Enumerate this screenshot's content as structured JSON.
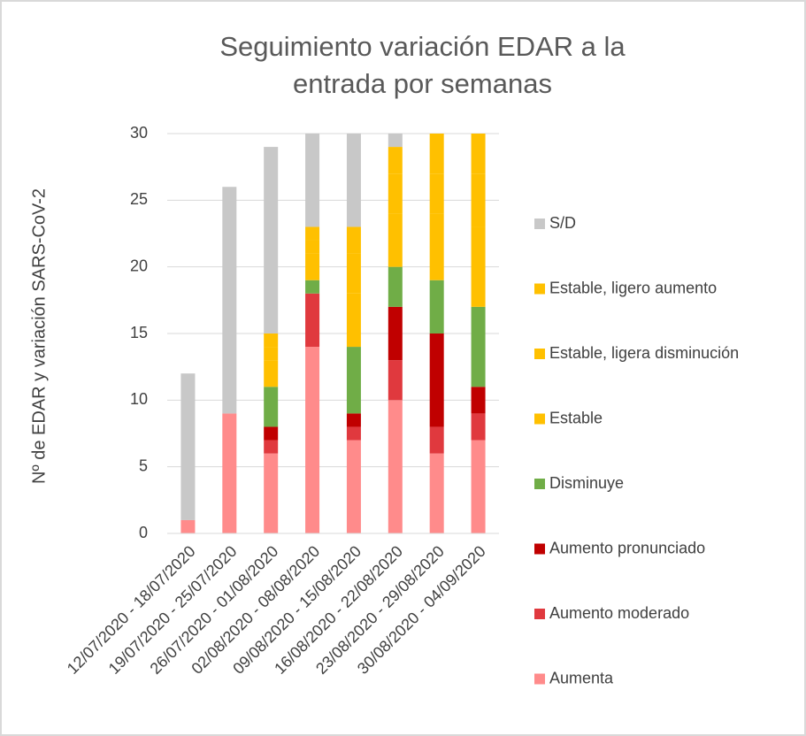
{
  "chart_data": {
    "type": "stacked_bar",
    "title": "Seguimiento variación EDAR a la entrada por semanas",
    "y_label": "Nº de EDAR y variación SARS-CoV-2",
    "categories": [
      "12/07/2020 - 18/07/2020",
      "19/07/2020 - 25/07/2020",
      "26/07/2020 - 01/08/2020",
      "02/08/2020 - 08/08/2020",
      "09/08/2020 - 15/08/2020",
      "16/08/2020 - 22/08/2020",
      "23/08/2020 - 29/08/2020",
      "30/08/2020 - 04/09/2020"
    ],
    "series": [
      {
        "name": "Aumenta",
        "color": "#ff8b8b",
        "values": [
          1,
          9,
          6,
          14,
          7,
          10,
          6,
          7
        ]
      },
      {
        "name": "Aumento moderado",
        "color": "#e0393e",
        "values": [
          0,
          0,
          1,
          4,
          1,
          3,
          2,
          2
        ]
      },
      {
        "name": "Aumento pronunciado",
        "color": "#c00000",
        "values": [
          0,
          0,
          1,
          0,
          1,
          4,
          7,
          2
        ]
      },
      {
        "name": "Disminuye",
        "color": "#70ad47",
        "values": [
          0,
          0,
          3,
          1,
          5,
          3,
          4,
          6
        ]
      },
      {
        "name": "Estable",
        "color": "#ffc000",
        "values": [
          0,
          0,
          2,
          2,
          4,
          4,
          5,
          6
        ]
      },
      {
        "name": "Estable, ligera disminución",
        "color": "#ffc000",
        "values": [
          0,
          0,
          1,
          1,
          3,
          3,
          3,
          4
        ]
      },
      {
        "name": "Estable, ligero aumento",
        "color": "#ffc000",
        "values": [
          0,
          0,
          1,
          1,
          2,
          2,
          3,
          3
        ]
      },
      {
        "name": "S/D",
        "color": "#c8c8c8",
        "values": [
          11,
          17,
          14,
          7,
          7,
          1,
          0,
          0
        ]
      }
    ],
    "ylim": [
      0,
      30
    ],
    "yticks": [
      0,
      5,
      10,
      15,
      20,
      25,
      30
    ],
    "grid": true,
    "legend": "right"
  }
}
